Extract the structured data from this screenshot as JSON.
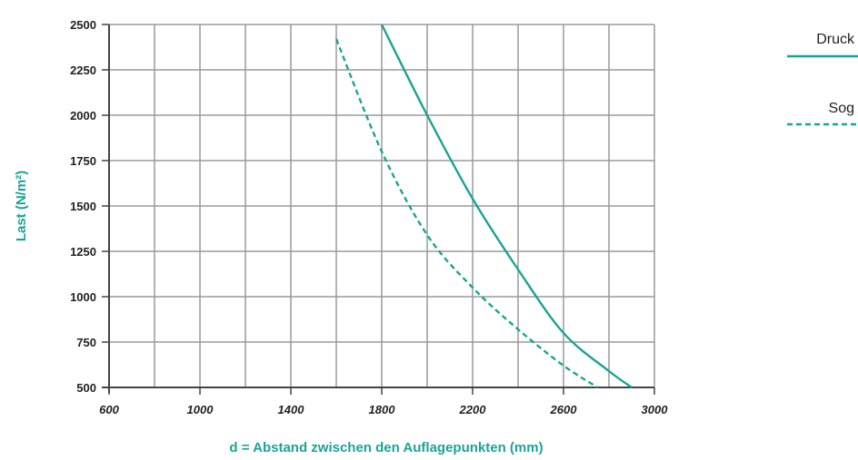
{
  "colors": {
    "series": "#1aa395",
    "grid": "#9a9a9a",
    "text": "#222222"
  },
  "chart_data": {
    "type": "line",
    "xlabel": "d = Abstand zwischen den Auflagepunkten (mm)",
    "ylabel": "Last (N/m²)",
    "xlim": [
      600,
      3000
    ],
    "ylim": [
      500,
      2500
    ],
    "x_ticks": [
      600,
      1000,
      1400,
      1800,
      2200,
      2600,
      3000
    ],
    "x_tick_labels": [
      "600",
      "1000",
      "1400",
      "1800",
      "2200",
      "2600",
      "3000"
    ],
    "y_ticks": [
      500,
      750,
      1000,
      1250,
      1500,
      1750,
      2000,
      2250,
      2500
    ],
    "y_tick_labels": [
      "500",
      "750",
      "1000",
      "1250",
      "1500",
      "1750",
      "2000",
      "2250",
      "2500"
    ],
    "grid": true,
    "legend_position": "right",
    "series": [
      {
        "name": "Druck",
        "style": "solid",
        "x": [
          1800,
          2000,
          2200,
          2400,
          2600,
          2800,
          2900
        ],
        "y": [
          2500,
          2000,
          1540,
          1150,
          800,
          590,
          500
        ]
      },
      {
        "name": "Sog",
        "style": "dashed",
        "x": [
          1600,
          1800,
          2000,
          2200,
          2400,
          2600,
          2750
        ],
        "y": [
          2420,
          1800,
          1340,
          1050,
          820,
          620,
          500
        ]
      }
    ]
  }
}
